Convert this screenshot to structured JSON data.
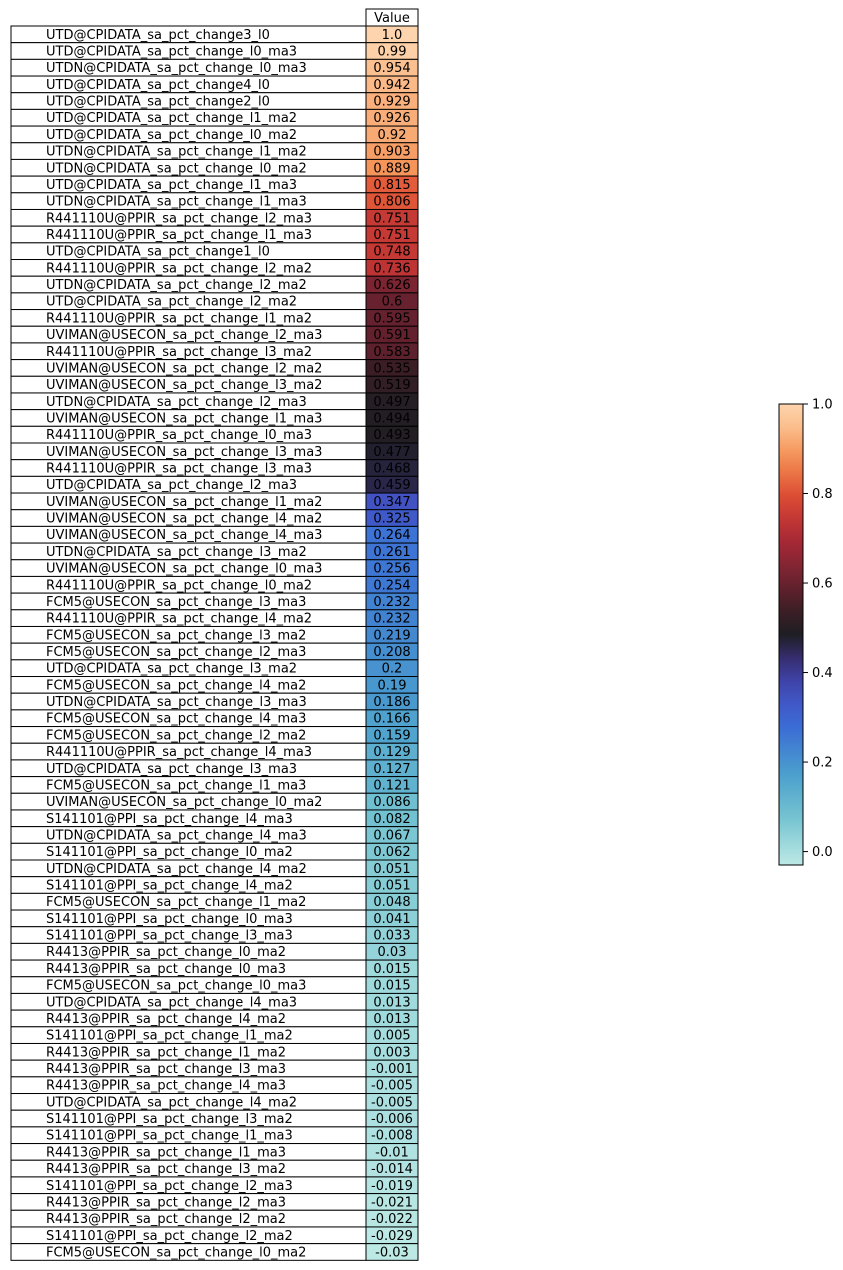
{
  "chart_data": {
    "type": "table",
    "column_header": "Value",
    "colorbar": {
      "ticks": [
        "0.0",
        "0.2",
        "0.4",
        "0.6",
        "0.8",
        "1.0"
      ],
      "tick_values": [
        0,
        0.2,
        0.4,
        0.6,
        0.8,
        1.0
      ],
      "range": [
        -0.03,
        1.0
      ],
      "colormap": "icefire"
    },
    "rows": [
      {
        "label": "UTD@CPIDATA_sa_pct_change3_l0",
        "value": "1.0"
      },
      {
        "label": "UTD@CPIDATA_sa_pct_change_l0_ma3",
        "value": "0.99"
      },
      {
        "label": "UTDN@CPIDATA_sa_pct_change_l0_ma3",
        "value": "0.954"
      },
      {
        "label": "UTD@CPIDATA_sa_pct_change4_l0",
        "value": "0.942"
      },
      {
        "label": "UTD@CPIDATA_sa_pct_change2_l0",
        "value": "0.929"
      },
      {
        "label": "UTD@CPIDATA_sa_pct_change_l1_ma2",
        "value": "0.926"
      },
      {
        "label": "UTD@CPIDATA_sa_pct_change_l0_ma2",
        "value": "0.92"
      },
      {
        "label": "UTDN@CPIDATA_sa_pct_change_l1_ma2",
        "value": "0.903"
      },
      {
        "label": "UTDN@CPIDATA_sa_pct_change_l0_ma2",
        "value": "0.889"
      },
      {
        "label": "UTD@CPIDATA_sa_pct_change_l1_ma3",
        "value": "0.815"
      },
      {
        "label": "UTDN@CPIDATA_sa_pct_change_l1_ma3",
        "value": "0.806"
      },
      {
        "label": "R441110U@PPIR_sa_pct_change_l2_ma3",
        "value": "0.751"
      },
      {
        "label": "R441110U@PPIR_sa_pct_change_l1_ma3",
        "value": "0.751"
      },
      {
        "label": "UTD@CPIDATA_sa_pct_change1_l0",
        "value": "0.748"
      },
      {
        "label": "R441110U@PPIR_sa_pct_change_l2_ma2",
        "value": "0.736"
      },
      {
        "label": "UTDN@CPIDATA_sa_pct_change_l2_ma2",
        "value": "0.626"
      },
      {
        "label": "UTD@CPIDATA_sa_pct_change_l2_ma2",
        "value": "0.6"
      },
      {
        "label": "R441110U@PPIR_sa_pct_change_l1_ma2",
        "value": "0.595"
      },
      {
        "label": "UVIMAN@USECON_sa_pct_change_l2_ma3",
        "value": "0.591"
      },
      {
        "label": "R441110U@PPIR_sa_pct_change_l3_ma2",
        "value": "0.583"
      },
      {
        "label": "UVIMAN@USECON_sa_pct_change_l2_ma2",
        "value": "0.535"
      },
      {
        "label": "UVIMAN@USECON_sa_pct_change_l3_ma2",
        "value": "0.519"
      },
      {
        "label": "UTDN@CPIDATA_sa_pct_change_l2_ma3",
        "value": "0.497"
      },
      {
        "label": "UVIMAN@USECON_sa_pct_change_l1_ma3",
        "value": "0.494"
      },
      {
        "label": "R441110U@PPIR_sa_pct_change_l0_ma3",
        "value": "0.493"
      },
      {
        "label": "UVIMAN@USECON_sa_pct_change_l3_ma3",
        "value": "0.477"
      },
      {
        "label": "R441110U@PPIR_sa_pct_change_l3_ma3",
        "value": "0.468"
      },
      {
        "label": "UTD@CPIDATA_sa_pct_change_l2_ma3",
        "value": "0.459"
      },
      {
        "label": "UVIMAN@USECON_sa_pct_change_l1_ma2",
        "value": "0.347"
      },
      {
        "label": "UVIMAN@USECON_sa_pct_change_l4_ma2",
        "value": "0.325"
      },
      {
        "label": "UVIMAN@USECON_sa_pct_change_l4_ma3",
        "value": "0.264"
      },
      {
        "label": "UTDN@CPIDATA_sa_pct_change_l3_ma2",
        "value": "0.261"
      },
      {
        "label": "UVIMAN@USECON_sa_pct_change_l0_ma3",
        "value": "0.256"
      },
      {
        "label": "R441110U@PPIR_sa_pct_change_l0_ma2",
        "value": "0.254"
      },
      {
        "label": "FCM5@USECON_sa_pct_change_l3_ma3",
        "value": "0.232"
      },
      {
        "label": "R441110U@PPIR_sa_pct_change_l4_ma2",
        "value": "0.232"
      },
      {
        "label": "FCM5@USECON_sa_pct_change_l3_ma2",
        "value": "0.219"
      },
      {
        "label": "FCM5@USECON_sa_pct_change_l2_ma3",
        "value": "0.208"
      },
      {
        "label": "UTD@CPIDATA_sa_pct_change_l3_ma2",
        "value": "0.2"
      },
      {
        "label": "FCM5@USECON_sa_pct_change_l4_ma2",
        "value": "0.19"
      },
      {
        "label": "UTDN@CPIDATA_sa_pct_change_l3_ma3",
        "value": "0.186"
      },
      {
        "label": "FCM5@USECON_sa_pct_change_l4_ma3",
        "value": "0.166"
      },
      {
        "label": "FCM5@USECON_sa_pct_change_l2_ma2",
        "value": "0.159"
      },
      {
        "label": "R441110U@PPIR_sa_pct_change_l4_ma3",
        "value": "0.129"
      },
      {
        "label": "UTD@CPIDATA_sa_pct_change_l3_ma3",
        "value": "0.127"
      },
      {
        "label": "FCM5@USECON_sa_pct_change_l1_ma3",
        "value": "0.121"
      },
      {
        "label": "UVIMAN@USECON_sa_pct_change_l0_ma2",
        "value": "0.086"
      },
      {
        "label": "S141101@PPI_sa_pct_change_l4_ma3",
        "value": "0.082"
      },
      {
        "label": "UTDN@CPIDATA_sa_pct_change_l4_ma3",
        "value": "0.067"
      },
      {
        "label": "S141101@PPI_sa_pct_change_l0_ma2",
        "value": "0.062"
      },
      {
        "label": "UTDN@CPIDATA_sa_pct_change_l4_ma2",
        "value": "0.051"
      },
      {
        "label": "S141101@PPI_sa_pct_change_l4_ma2",
        "value": "0.051"
      },
      {
        "label": "FCM5@USECON_sa_pct_change_l1_ma2",
        "value": "0.048"
      },
      {
        "label": "S141101@PPI_sa_pct_change_l0_ma3",
        "value": "0.041"
      },
      {
        "label": "S141101@PPI_sa_pct_change_l3_ma3",
        "value": "0.033"
      },
      {
        "label": "R4413@PPIR_sa_pct_change_l0_ma2",
        "value": "0.03"
      },
      {
        "label": "R4413@PPIR_sa_pct_change_l0_ma3",
        "value": "0.015"
      },
      {
        "label": "FCM5@USECON_sa_pct_change_l0_ma3",
        "value": "0.015"
      },
      {
        "label": "UTD@CPIDATA_sa_pct_change_l4_ma3",
        "value": "0.013"
      },
      {
        "label": "R4413@PPIR_sa_pct_change_l4_ma2",
        "value": "0.013"
      },
      {
        "label": "S141101@PPI_sa_pct_change_l1_ma2",
        "value": "0.005"
      },
      {
        "label": "R4413@PPIR_sa_pct_change_l1_ma2",
        "value": "0.003"
      },
      {
        "label": "R4413@PPIR_sa_pct_change_l3_ma3",
        "value": "-0.001"
      },
      {
        "label": "R4413@PPIR_sa_pct_change_l4_ma3",
        "value": "-0.005"
      },
      {
        "label": "UTD@CPIDATA_sa_pct_change_l4_ma2",
        "value": "-0.005"
      },
      {
        "label": "S141101@PPI_sa_pct_change_l3_ma2",
        "value": "-0.006"
      },
      {
        "label": "S141101@PPI_sa_pct_change_l1_ma3",
        "value": "-0.008"
      },
      {
        "label": "R4413@PPIR_sa_pct_change_l1_ma3",
        "value": "-0.01"
      },
      {
        "label": "R4413@PPIR_sa_pct_change_l3_ma2",
        "value": "-0.014"
      },
      {
        "label": "S141101@PPI_sa_pct_change_l2_ma3",
        "value": "-0.019"
      },
      {
        "label": "R4413@PPIR_sa_pct_change_l2_ma3",
        "value": "-0.021"
      },
      {
        "label": "R4413@PPIR_sa_pct_change_l2_ma2",
        "value": "-0.022"
      },
      {
        "label": "S141101@PPI_sa_pct_change_l2_ma2",
        "value": "-0.029"
      },
      {
        "label": "FCM5@USECON_sa_pct_change_l0_ma2",
        "value": "-0.03"
      }
    ]
  }
}
